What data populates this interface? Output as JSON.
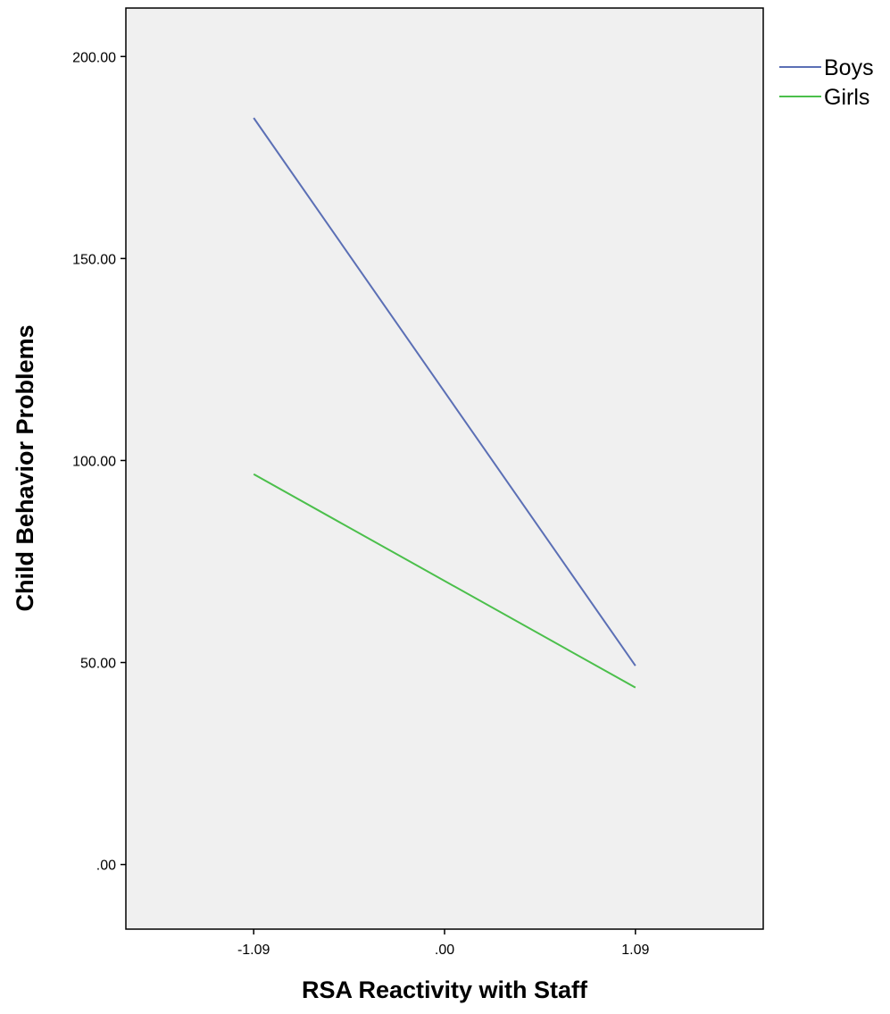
{
  "chart_data": {
    "type": "line",
    "title": "",
    "xlabel": "RSA Reactivity with Staff",
    "ylabel": "Child Behavior Problems",
    "x": [
      -1.09,
      1.09
    ],
    "x_tick_labels": [
      "-1.09",
      ".00",
      "1.09"
    ],
    "x_ticks": [
      -1.09,
      0,
      1.09
    ],
    "xlim": [
      -1.82,
      1.82
    ],
    "y_tick_labels": [
      ".00",
      "50.00",
      "100.00",
      "150.00",
      "200.00"
    ],
    "y_ticks": [
      0,
      50,
      100,
      150,
      200
    ],
    "ylim": [
      -16,
      212
    ],
    "grid": false,
    "legend_position": "outside-right-top",
    "series": [
      {
        "name": "Boys",
        "color": "#5b6fb5",
        "values": [
          184.8,
          49.2
        ]
      },
      {
        "name": "Girls",
        "color": "#4bbf4b",
        "values": [
          96.6,
          43.8
        ]
      }
    ],
    "plot_background": "#f0f0f0"
  }
}
